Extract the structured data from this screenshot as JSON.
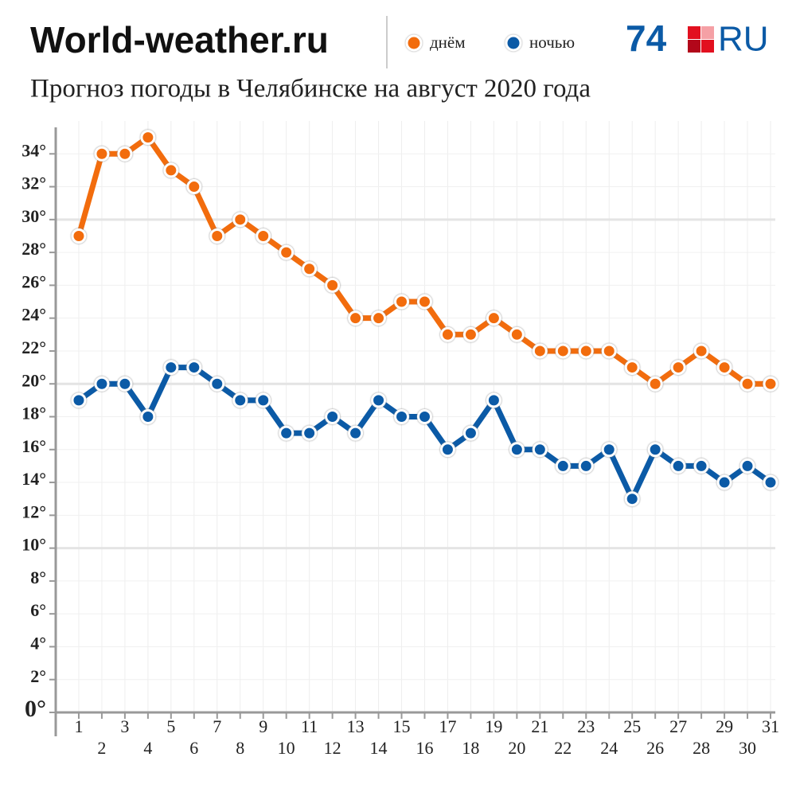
{
  "chart_data": {
    "type": "line",
    "source": "World-weather.ru",
    "title": "Прогноз погоды в Челябинске на август 2020 года",
    "x": [
      1,
      2,
      3,
      4,
      5,
      6,
      7,
      8,
      9,
      10,
      11,
      12,
      13,
      14,
      15,
      16,
      17,
      18,
      19,
      20,
      21,
      22,
      23,
      24,
      25,
      26,
      27,
      28,
      29,
      30,
      31
    ],
    "xlim": [
      0,
      31
    ],
    "xticks": [
      1,
      2,
      3,
      4,
      5,
      6,
      7,
      8,
      9,
      10,
      11,
      12,
      13,
      14,
      15,
      16,
      17,
      18,
      19,
      20,
      21,
      22,
      23,
      24,
      25,
      26,
      27,
      28,
      29,
      30,
      31
    ],
    "ylim": [
      0,
      36
    ],
    "yticks": [
      {
        "value": 0,
        "label": "0°"
      },
      {
        "value": 2,
        "label": "2°"
      },
      {
        "value": 4,
        "label": "4°"
      },
      {
        "value": 6,
        "label": "6°"
      },
      {
        "value": 8,
        "label": "8°"
      },
      {
        "value": 10,
        "label": "10°"
      },
      {
        "value": 12,
        "label": "12°"
      },
      {
        "value": 14,
        "label": "14°"
      },
      {
        "value": 16,
        "label": "16°"
      },
      {
        "value": 18,
        "label": "18°"
      },
      {
        "value": 20,
        "label": "20°"
      },
      {
        "value": 22,
        "label": "22°"
      },
      {
        "value": 24,
        "label": "24°"
      },
      {
        "value": 26,
        "label": "26°"
      },
      {
        "value": 28,
        "label": "28°"
      },
      {
        "value": 30,
        "label": "30°"
      },
      {
        "value": 32,
        "label": "32°"
      },
      {
        "value": 34,
        "label": "34°"
      }
    ],
    "grid": true,
    "series": [
      {
        "name": "днём",
        "color": "#f26c0d",
        "values": [
          29,
          34,
          34,
          35,
          33,
          32,
          29,
          30,
          29,
          28,
          27,
          26,
          24,
          24,
          25,
          25,
          23,
          23,
          24,
          23,
          22,
          22,
          22,
          22,
          21,
          20,
          21,
          22,
          21,
          20,
          20
        ]
      },
      {
        "name": "ночью",
        "color": "#0b5aa6",
        "values": [
          19,
          20,
          20,
          18,
          21,
          21,
          20,
          19,
          19,
          17,
          17,
          18,
          17,
          19,
          18,
          18,
          16,
          17,
          19,
          16,
          16,
          15,
          15,
          16,
          13,
          16,
          15,
          15,
          14,
          15,
          14
        ]
      }
    ]
  },
  "logo": {
    "left": "74",
    "right": "RU"
  }
}
